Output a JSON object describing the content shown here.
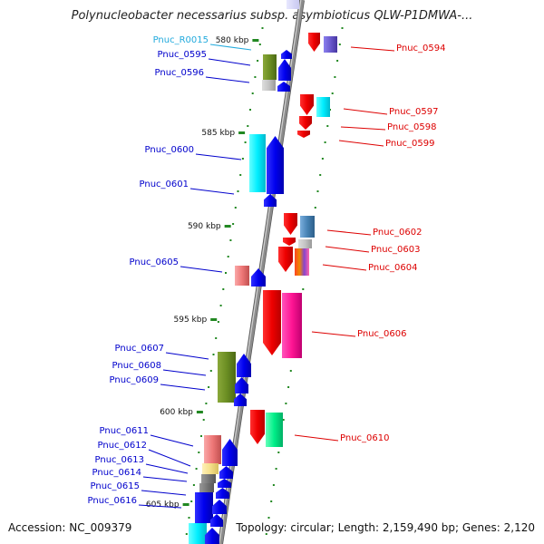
{
  "title": "Polynucleobacter necessarius subsp. asymbioticus QLW-P1DMWA-...",
  "footer": {
    "accession": "Accession: NC_009379",
    "summary": "Topology: circular; Length: 2,159,490 bp; Genes: 2,120"
  },
  "colors": {
    "backbone": "#8c8c8c",
    "forward_label": "#0000cc",
    "reverse_label": "#dd0000",
    "rna_label": "#22aadd",
    "tick": "#228822"
  },
  "scale_marks": [
    {
      "label": "580 kbp"
    },
    {
      "label": "585 kbp"
    },
    {
      "label": "590 kbp"
    },
    {
      "label": "595 kbp"
    },
    {
      "label": "600 kbp"
    },
    {
      "label": "605 kbp"
    }
  ],
  "genes": [
    {
      "name": "Pnuc_R0015",
      "strand": "forward",
      "kind": "rna"
    },
    {
      "name": "Pnuc_0595",
      "strand": "forward",
      "kind": "cds"
    },
    {
      "name": "Pnuc_0596",
      "strand": "forward",
      "kind": "cds"
    },
    {
      "name": "Pnuc_0600",
      "strand": "forward",
      "kind": "cds"
    },
    {
      "name": "Pnuc_0601",
      "strand": "forward",
      "kind": "cds"
    },
    {
      "name": "Pnuc_0605",
      "strand": "forward",
      "kind": "cds"
    },
    {
      "name": "Pnuc_0607",
      "strand": "forward",
      "kind": "cds"
    },
    {
      "name": "Pnuc_0608",
      "strand": "forward",
      "kind": "cds"
    },
    {
      "name": "Pnuc_0609",
      "strand": "forward",
      "kind": "cds"
    },
    {
      "name": "Pnuc_0611",
      "strand": "forward",
      "kind": "cds"
    },
    {
      "name": "Pnuc_0612",
      "strand": "forward",
      "kind": "cds"
    },
    {
      "name": "Pnuc_0613",
      "strand": "forward",
      "kind": "cds"
    },
    {
      "name": "Pnuc_0614",
      "strand": "forward",
      "kind": "cds"
    },
    {
      "name": "Pnuc_0615",
      "strand": "forward",
      "kind": "cds"
    },
    {
      "name": "Pnuc_0616",
      "strand": "forward",
      "kind": "cds"
    },
    {
      "name": "Pnuc_0594",
      "strand": "reverse",
      "kind": "cds"
    },
    {
      "name": "Pnuc_0597",
      "strand": "reverse",
      "kind": "cds"
    },
    {
      "name": "Pnuc_0598",
      "strand": "reverse",
      "kind": "cds"
    },
    {
      "name": "Pnuc_0599",
      "strand": "reverse",
      "kind": "cds"
    },
    {
      "name": "Pnuc_0602",
      "strand": "reverse",
      "kind": "cds"
    },
    {
      "name": "Pnuc_0603",
      "strand": "reverse",
      "kind": "cds"
    },
    {
      "name": "Pnuc_0604",
      "strand": "reverse",
      "kind": "cds"
    },
    {
      "name": "Pnuc_0606",
      "strand": "reverse",
      "kind": "cds"
    },
    {
      "name": "Pnuc_0610",
      "strand": "reverse",
      "kind": "cds"
    }
  ]
}
